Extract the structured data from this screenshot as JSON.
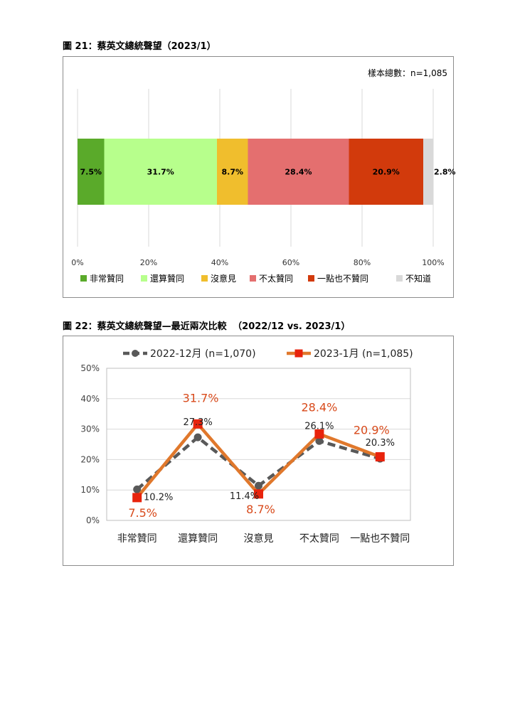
{
  "fig21": {
    "title": "圖 21：蔡英文總統聲望（2023/1）",
    "sample_note": "樣本總數：n=1,085"
  },
  "fig22": {
    "title": "圖 22：蔡英文總統聲望—最近兩次比較",
    "title_suffix": "（2022/12 vs. 2023/1）"
  },
  "colors": {
    "very_approve": "#5aaa2a",
    "approve": "#b7ff8c",
    "no_opinion": "#f0be2d",
    "disapprove": "#e46f6f",
    "very_disapprove": "#d23a0c",
    "dont_know": "#d9d9d9",
    "series_dec": "#595959",
    "series_jan": "#e0782c",
    "jan_label": "#d84a1b",
    "sample_note": "#4472c4"
  },
  "chart_data": [
    {
      "type": "bar",
      "orientation": "horizontal-stacked",
      "categories": [
        "非常贊同",
        "還算贊同",
        "沒意見",
        "不太贊同",
        "一點也不贊同",
        "不知道"
      ],
      "values": [
        7.5,
        31.7,
        8.7,
        28.4,
        20.9,
        2.8
      ],
      "value_labels": [
        "7.5%",
        "31.7%",
        "8.7%",
        "28.4%",
        "20.9%",
        "2.8%"
      ],
      "xlim": [
        0,
        100
      ],
      "x_ticks": [
        "0%",
        "20%",
        "40%",
        "60%",
        "80%",
        "100%"
      ],
      "grid": "vertical",
      "legend": "bottom"
    },
    {
      "type": "line",
      "categories": [
        "非常贊同",
        "還算贊同",
        "沒意見",
        "不太贊同",
        "一點也不贊同"
      ],
      "ylim": [
        0,
        50
      ],
      "y_ticks": [
        "0%",
        "10%",
        "20%",
        "30%",
        "40%",
        "50%"
      ],
      "grid": "horizontal",
      "legend": "top",
      "series": [
        {
          "name": "2022-12月 (n=1,070)",
          "values": [
            10.2,
            27.3,
            11.4,
            26.1,
            20.3
          ],
          "labels": [
            "10.2%",
            "27.3%",
            "11.4%",
            "26.1%",
            "20.3%"
          ],
          "style": "dashed",
          "marker": "circle"
        },
        {
          "name": "2023-1月 (n=1,085)",
          "values": [
            7.5,
            31.7,
            8.7,
            28.4,
            20.9
          ],
          "labels": [
            "7.5%",
            "31.7%",
            "8.7%",
            "28.4%",
            "20.9%"
          ],
          "style": "solid",
          "marker": "square"
        }
      ]
    }
  ]
}
